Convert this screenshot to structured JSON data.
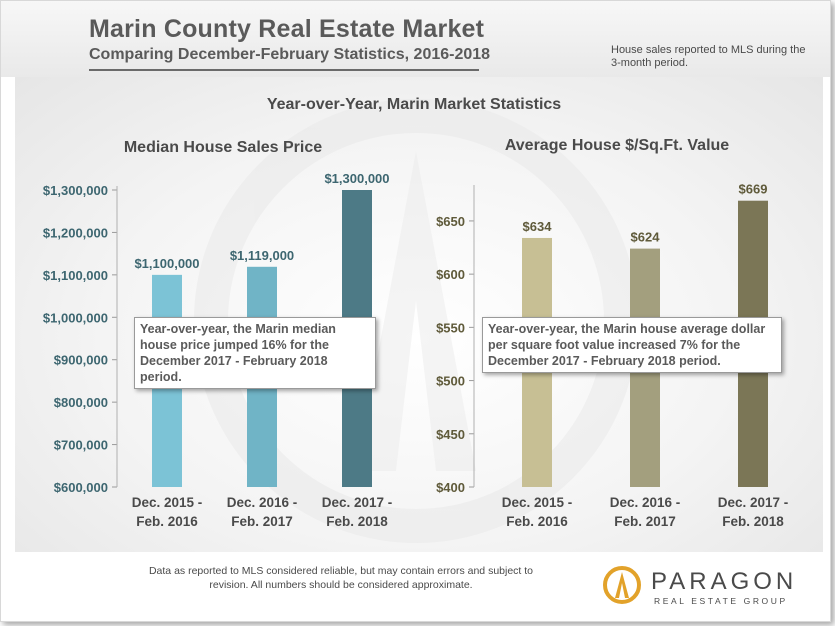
{
  "header": {
    "title": "Marin County Real Estate Market",
    "subtitle": "Comparing December-February Statistics, 2016-2018",
    "note": "House  sales reported to MLS during the 3-month period."
  },
  "section_title": "Year-over-Year, Marin Market Statistics",
  "callouts": {
    "left": "Year-over-year, the Marin median house price jumped 16% for the December 2017 - February 2018 period.",
    "right": "Year-over-year, the Marin house average dollar per square foot value increased 7% for the December 2017 - February 2018 period."
  },
  "footer": {
    "disclaimer": "Data as reported to MLS considered reliable, but may contain errors and subject to revision.  All numbers should be considered approximate.",
    "logo_word": "PARAGON",
    "logo_sub": "REAL ESTATE GROUP"
  },
  "colors": {
    "left_bars": [
      "#7cc3d6",
      "#70b4c6",
      "#4d7a86"
    ],
    "right_bars": [
      "#c7bf94",
      "#a39f7e",
      "#7b7656"
    ],
    "left_axis_text": "#3d6670",
    "right_axis_text": "#5f5a3a",
    "logo_accent": "#e2a22a"
  },
  "chart_data": [
    {
      "type": "bar",
      "title": "Median House Sales Price",
      "categories": [
        "Dec. 2015 - Feb. 2016",
        "Dec. 2016 - Feb. 2017",
        "Dec. 2017 - Feb. 2018"
      ],
      "values": [
        1100000,
        1119000,
        1300000
      ],
      "data_labels": [
        "$1,100,000",
        "$1,119,000",
        "$1,300,000"
      ],
      "ylim": [
        600000,
        1300000
      ],
      "yticks": [
        600000,
        700000,
        800000,
        900000,
        1000000,
        1100000,
        1200000,
        1300000
      ],
      "ytick_labels": [
        "$600,000",
        "$700,000",
        "$800,000",
        "$900,000",
        "$1,000,000",
        "$1,100,000",
        "$1,200,000",
        "$1,300,000"
      ],
      "xlabel": "",
      "ylabel": "",
      "grid": false,
      "legend": "none"
    },
    {
      "type": "bar",
      "title": "Average House $/Sq.Ft. Value",
      "categories": [
        "Dec. 2015 - Feb. 2016",
        "Dec. 2016 - Feb. 2017",
        "Dec. 2017 - Feb. 2018"
      ],
      "values": [
        634,
        624,
        669
      ],
      "data_labels": [
        "$634",
        "$624",
        "$669"
      ],
      "ylim": [
        400,
        680
      ],
      "yticks": [
        400,
        450,
        500,
        550,
        600,
        650
      ],
      "ytick_labels": [
        "$400",
        "$450",
        "$500",
        "$550",
        "$600",
        "$650"
      ],
      "xlabel": "",
      "ylabel": "",
      "grid": false,
      "legend": "none"
    }
  ]
}
